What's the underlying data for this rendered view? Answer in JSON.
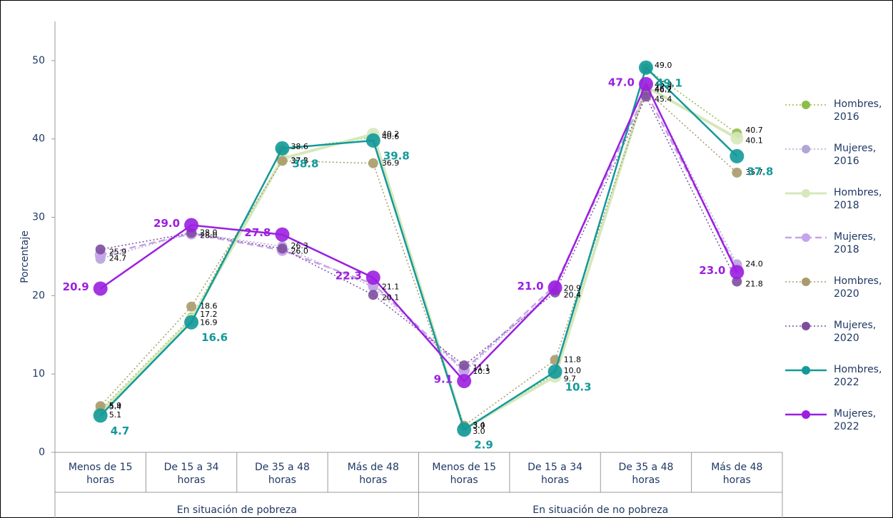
{
  "chart_data": {
    "type": "line",
    "y_label": "Porcentaje",
    "categories": [
      "Menos de 15 horas",
      "De 15 a 34 horas",
      "De 35 a 48 horas",
      "Más de 48 horas",
      "Menos de 15 horas",
      "De 15 a 34 horas",
      "De 35 a 48 horas",
      "Más de 48 horas"
    ],
    "groups": [
      "En situación de pobreza",
      "En situación de no pobreza"
    ],
    "ylim": [
      0,
      55
    ],
    "yticks": [
      0,
      10,
      20,
      30,
      40,
      50
    ],
    "series": [
      {
        "name": "Hombres, 2016",
        "color": "#8fbc45",
        "style": "dotted",
        "values": [
          5.4,
          17.2,
          38.6,
          40.2,
          3.0,
          10.0,
          49.0,
          40.7
        ],
        "value_labels": [
          "5.4",
          "17.2",
          "38.6",
          "40.2",
          "3.0",
          "10.0",
          "49.0",
          "40.7"
        ]
      },
      {
        "name": "Mujeres, 2016",
        "color": "#b2a6d6",
        "style": "dotted",
        "values": [
          24.7,
          28.0,
          26.3,
          21.1,
          10.3,
          20.9,
          46.9,
          24.0
        ],
        "value_labels": [
          "24.7",
          "28.0",
          "26.3",
          "21.1",
          "10.3",
          "20.9",
          "46.9",
          "24.0"
        ]
      },
      {
        "name": "Hombres, 2018",
        "color": "#d6e8bc",
        "style": "solid-thick",
        "values": [
          5.1,
          16.9,
          37.5,
          40.6,
          3.0,
          9.7,
          46.7,
          40.1
        ],
        "value_labels": [
          "5.1",
          "16.9",
          "37.5",
          "40.6",
          "3.0",
          "9.7",
          "46.7",
          "40.1"
        ]
      },
      {
        "name": "Mujeres, 2018",
        "color": "#c6a3ea",
        "style": "dashed",
        "values": [
          25.2,
          27.9,
          25.8,
          21.5,
          10.5,
          21.3,
          46.0,
          23.5
        ],
        "value_labels": [
          null,
          null,
          null,
          null,
          null,
          null,
          null,
          null
        ]
      },
      {
        "name": "Hombres, 2020",
        "color": "#a89a6a",
        "style": "dotted",
        "values": [
          5.9,
          18.6,
          37.2,
          36.9,
          3.4,
          11.8,
          46.2,
          35.7
        ],
        "value_labels": [
          "5.9",
          "18.6",
          "37.2",
          "36.9",
          "3.4",
          "11.8",
          "46.2",
          "35.7"
        ]
      },
      {
        "name": "Mujeres, 2020",
        "color": "#7d4e9e",
        "style": "dotted",
        "values": [
          25.9,
          28.0,
          26.0,
          20.1,
          11.1,
          20.4,
          45.4,
          21.8
        ],
        "value_labels": [
          "25.9",
          "28.0",
          "26.0",
          "20.1",
          "11.1",
          "20.4",
          "45.4",
          "21.8"
        ]
      },
      {
        "name": "Hombres, 2022",
        "color": "#13999a",
        "style": "solid",
        "values": [
          4.7,
          16.6,
          38.8,
          39.8,
          2.9,
          10.3,
          49.1,
          37.8
        ],
        "value_labels": [
          "4.7",
          "16.6",
          "38.8",
          "39.8",
          "2.9",
          "10.3",
          "49.1",
          "37.8"
        ]
      },
      {
        "name": "Mujeres, 2022",
        "color": "#9b1fe0",
        "style": "solid",
        "values": [
          20.9,
          29.0,
          27.8,
          22.3,
          9.1,
          21.0,
          47.0,
          23.0
        ],
        "value_labels": [
          "20.9",
          "29.0",
          "27.8",
          "22.3",
          "9.1",
          "21.0",
          "47.0",
          "23.0"
        ]
      }
    ]
  }
}
